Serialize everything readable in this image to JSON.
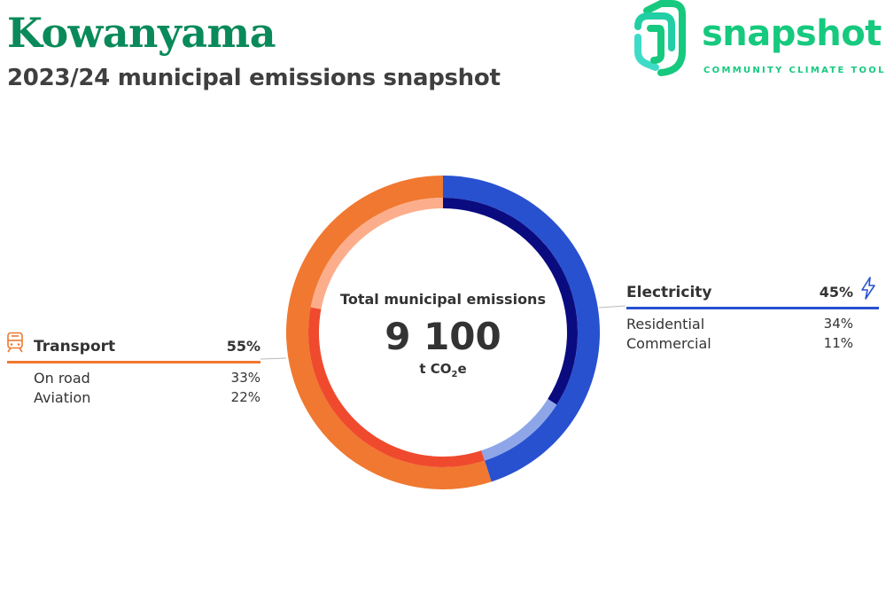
{
  "header": {
    "title": "Kowanyama",
    "subtitle": "2023/24 municipal emissions snapshot"
  },
  "brand": {
    "name": "snapshot",
    "tagline": "COMMUNITY CLIMATE TOOL",
    "color": "#16c97e"
  },
  "center": {
    "label": "Total municipal emissions",
    "value": "9 100",
    "unit_main": "t CO",
    "unit_sub": "2",
    "unit_tail": "e"
  },
  "legends": {
    "electricity": {
      "name": "Electricity",
      "pct": "45%",
      "icon": "lightning-icon",
      "color": "#2851d0",
      "items": [
        {
          "label": "Residential",
          "value": "34%"
        },
        {
          "label": "Commercial",
          "value": "11%"
        }
      ]
    },
    "transport": {
      "name": "Transport",
      "pct": "55%",
      "icon": "train-icon",
      "color": "#f07830",
      "items": [
        {
          "label": "On road",
          "value": "33%"
        },
        {
          "label": "Aviation",
          "value": "22%"
        }
      ]
    }
  },
  "chart_data": {
    "type": "donut",
    "total": 9100,
    "unit": "t CO2e",
    "outer_ring": [
      {
        "name": "Electricity",
        "value": 45,
        "color": "#2851d0"
      },
      {
        "name": "Transport",
        "value": 55,
        "color": "#f07830"
      }
    ],
    "inner_ring": [
      {
        "name": "Residential",
        "value": 34,
        "color": "#0b0b80"
      },
      {
        "name": "Commercial",
        "value": 11,
        "color": "#8ea6e8"
      },
      {
        "name": "On road",
        "value": 33,
        "color": "#f04a2e"
      },
      {
        "name": "Aviation",
        "value": 22,
        "color": "#fcae8c"
      }
    ]
  }
}
